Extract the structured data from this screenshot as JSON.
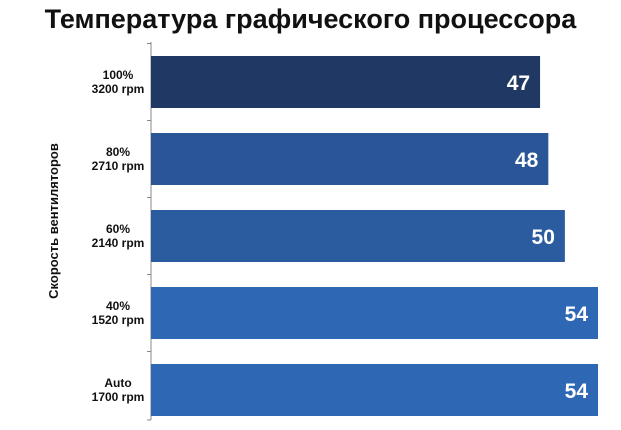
{
  "chart_data": {
    "type": "bar",
    "orientation": "horizontal",
    "title": "Температура графического процессора",
    "ylabel": "Скорость вентиляторов",
    "xlabel": "",
    "categories": [
      [
        "100%",
        "3200 rpm"
      ],
      [
        "80%",
        "2710 rpm"
      ],
      [
        "60%",
        "2140 rpm"
      ],
      [
        "40%",
        "1520 rpm"
      ],
      [
        "Auto",
        "1700 rpm"
      ]
    ],
    "values": [
      47,
      48,
      50,
      54,
      54
    ],
    "data_labels": [
      "47",
      "48",
      "50",
      "54",
      "54"
    ],
    "bar_colors": [
      "#1f3864",
      "#2a5698",
      "#2b5ca0",
      "#2e68b4",
      "#2e68b4"
    ],
    "xlim": [
      0,
      54
    ],
    "grid": false,
    "legend": "none"
  }
}
